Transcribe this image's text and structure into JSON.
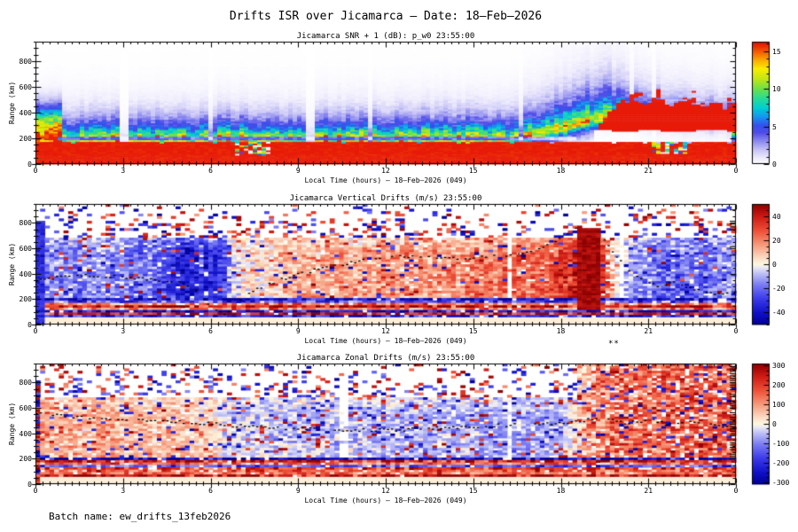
{
  "page": {
    "title": "Drifts ISR over Jicamarca — Date: 18–Feb–2026",
    "batch_label": "Batch name: ew_drifts_13feb2026",
    "footnote_mark": "**",
    "background": "#ffffff",
    "text_color": "#000000"
  },
  "chart_data": [
    {
      "type": "heatmap",
      "title": "Jicamarca SNR + 1 (dB): p_w0 23:55:00",
      "xlabel": "Local Time (hours) — 18–Feb–2026 (049)",
      "ylabel": "Range (km)",
      "xlim": [
        0,
        24
      ],
      "ylim": [
        0,
        950
      ],
      "x_tick_hours": [
        0,
        3,
        6,
        9,
        12,
        15,
        18,
        21,
        24
      ],
      "x_tick_labels": [
        "0",
        "3",
        "6",
        "9",
        "12",
        "15",
        "18",
        "21",
        "0"
      ],
      "y_tick_values": [
        0,
        200,
        400,
        600,
        800
      ],
      "y_tick_labels": [
        "0",
        "200",
        "400",
        "600",
        "800"
      ],
      "grid": false,
      "colorbar": {
        "min": 0,
        "max": 16.25,
        "minor_step": 1,
        "tick_values": [
          0,
          5,
          10,
          15
        ],
        "tick_labels": [
          "0",
          "5",
          "10",
          "15"
        ],
        "palette": "rainbow"
      },
      "model": {
        "kind": "snr",
        "amp": 14.5,
        "bottom_red_top_km": 170,
        "base_height_km": [
          [
            0,
            190
          ],
          [
            16,
            190
          ],
          [
            17.5,
            235
          ],
          [
            19,
            330
          ],
          [
            19.9,
            345
          ],
          [
            21,
            300
          ],
          [
            22.5,
            265
          ],
          [
            24,
            255
          ]
        ],
        "decay_km": [
          [
            0,
            105
          ],
          [
            16,
            112
          ],
          [
            18,
            150
          ],
          [
            19.5,
            165
          ],
          [
            21,
            135
          ],
          [
            24,
            120
          ]
        ],
        "left_hotspot": {
          "t_end": 0.9,
          "center_km": 300,
          "sigma_km": 110,
          "amp": 7
        },
        "pale_row_km": [
          185,
          212
        ],
        "blob_t_start": 19.35,
        "blob_top_km": [
          [
            19.35,
            300
          ],
          [
            19.8,
            440
          ],
          [
            20.3,
            500
          ],
          [
            20.8,
            470
          ],
          [
            21.2,
            515
          ],
          [
            21.8,
            455
          ],
          [
            22.3,
            485
          ],
          [
            22.8,
            435
          ],
          [
            23.3,
            475
          ],
          [
            23.7,
            435
          ],
          [
            24,
            465
          ]
        ],
        "blob_bottom_km": [
          [
            19.35,
            265
          ],
          [
            20,
            250
          ],
          [
            21,
            262
          ],
          [
            22,
            250
          ],
          [
            23,
            262
          ],
          [
            24,
            255
          ]
        ],
        "white_gap": {
          "t": [
            19.2,
            23.9
          ],
          "r": [
            175,
            265
          ]
        },
        "gap_stripes_t": [
          [
            2.95,
            3.18
          ],
          [
            9.3,
            9.55
          ]
        ],
        "speckle_boxes": [
          {
            "t": [
              6.9,
              8.0
            ],
            "r": [
              60,
              170
            ]
          },
          {
            "t": [
              21.05,
              22.35
            ],
            "r": [
              85,
              170
            ]
          }
        ]
      }
    },
    {
      "type": "heatmap",
      "title": "Jicamarca Vertical Drifts (m/s) 23:55:00",
      "xlabel": "Local Time (hours) — 18–Feb–2026 (049)",
      "ylabel": "Range (km)",
      "xlim": [
        0,
        24
      ],
      "ylim": [
        0,
        950
      ],
      "x_tick_hours": [
        0,
        3,
        6,
        9,
        12,
        15,
        18,
        21,
        24
      ],
      "x_tick_labels": [
        "0",
        "3",
        "6",
        "9",
        "12",
        "15",
        "18",
        "21",
        "0"
      ],
      "y_tick_values": [
        0,
        200,
        400,
        600,
        800
      ],
      "y_tick_labels": [
        "0",
        "200",
        "400",
        "600",
        "800"
      ],
      "grid": false,
      "colorbar": {
        "min": -50,
        "max": 50,
        "minor_step": 5,
        "tick_values": [
          -40,
          -20,
          0,
          20,
          40
        ],
        "tick_labels": [
          "-40",
          "-20",
          "0",
          "20",
          "40"
        ],
        "palette": "blue-white-red"
      },
      "model": {
        "kind": "drift",
        "noise": 9,
        "outlier_prob": 0.1,
        "background_profile": [
          [
            0,
            -15
          ],
          [
            2,
            -14
          ],
          [
            4,
            -18
          ],
          [
            4.8,
            -30
          ],
          [
            5.5,
            -34
          ],
          [
            6.3,
            -33
          ],
          [
            6.8,
            -4
          ],
          [
            7.5,
            7
          ],
          [
            10,
            13
          ],
          [
            13,
            17
          ],
          [
            16,
            21
          ],
          [
            17.5,
            27
          ],
          [
            18.3,
            36
          ],
          [
            18.7,
            46
          ],
          [
            19.2,
            46
          ],
          [
            19.6,
            25
          ],
          [
            20,
            -5
          ],
          [
            20.5,
            -14
          ],
          [
            21.5,
            -20
          ],
          [
            22.5,
            -22
          ],
          [
            23.2,
            -17
          ],
          [
            24,
            -15
          ]
        ],
        "saturated_band_t": [
          18.55,
          19.35
        ],
        "post_band_patchy_t": [
          19.45,
          20.3
        ],
        "gap_columns_t": [
          16.3,
          20.15
        ],
        "right_comb": true,
        "trace_km": [
          [
            0,
            345
          ],
          [
            0.7,
            375
          ],
          [
            1.5,
            390
          ],
          [
            2.2,
            385
          ],
          [
            3,
            380
          ],
          [
            3.7,
            360
          ],
          [
            4.3,
            345
          ],
          [
            5,
            330
          ],
          [
            5.5,
            260
          ],
          [
            6,
            140
          ],
          [
            6.5,
            75
          ],
          [
            6.9,
            190
          ],
          [
            7.5,
            285
          ],
          [
            8.5,
            365
          ],
          [
            9.5,
            430
          ],
          [
            10.5,
            480
          ],
          [
            11.5,
            520
          ],
          [
            12.5,
            545
          ],
          [
            13.5,
            530
          ],
          [
            14.5,
            525
          ],
          [
            15.5,
            538
          ],
          [
            16.5,
            562
          ],
          [
            17.3,
            615
          ],
          [
            18,
            685
          ],
          [
            18.5,
            755
          ],
          [
            19.35,
            700
          ],
          [
            19.8,
            560
          ],
          [
            20.3,
            430
          ],
          [
            20.8,
            360
          ],
          [
            21.3,
            310
          ],
          [
            21.9,
            335
          ],
          [
            22.5,
            285
          ],
          [
            23.2,
            245
          ],
          [
            24,
            265
          ]
        ],
        "trace_hidden_t": [
          18.55,
          19.3
        ]
      }
    },
    {
      "type": "heatmap",
      "title": "Jicamarca Zonal Drifts (m/s) 23:55:00",
      "xlabel": "Local Time (hours) — 18–Feb–2026 (049)",
      "ylabel": "Range (km)",
      "xlim": [
        0,
        24
      ],
      "ylim": [
        0,
        950
      ],
      "x_tick_hours": [
        0,
        3,
        6,
        9,
        12,
        15,
        18,
        21,
        24
      ],
      "x_tick_labels": [
        "0",
        "3",
        "6",
        "9",
        "12",
        "15",
        "18",
        "21",
        "0"
      ],
      "y_tick_values": [
        0,
        200,
        400,
        600,
        800
      ],
      "y_tick_labels": [
        "0",
        "200",
        "400",
        "600",
        "800"
      ],
      "grid": false,
      "colorbar": {
        "min": -310,
        "max": 310,
        "minor_step": 25,
        "tick_values": [
          -300,
          -200,
          -100,
          0,
          100,
          200,
          300
        ],
        "tick_labels": [
          "-300",
          "-200",
          "-100",
          "0",
          "100",
          "200",
          "300"
        ],
        "palette": "blue-white-red"
      },
      "model": {
        "kind": "drift",
        "noise": 48,
        "outlier_prob": 0.13,
        "background_profile": [
          [
            0,
            70
          ],
          [
            2,
            76
          ],
          [
            4,
            70
          ],
          [
            5.5,
            58
          ],
          [
            6.2,
            20
          ],
          [
            6.8,
            -28
          ],
          [
            8,
            -42
          ],
          [
            10,
            -48
          ],
          [
            12,
            -52
          ],
          [
            14,
            -62
          ],
          [
            16,
            -68
          ],
          [
            18,
            -58
          ],
          [
            18.6,
            30
          ],
          [
            19,
            115
          ],
          [
            20,
            150
          ],
          [
            21,
            135
          ],
          [
            22,
            150
          ],
          [
            23,
            160
          ],
          [
            24,
            150
          ]
        ],
        "gap_columns_t": [
          10.55,
          16.3
        ],
        "right_noisy_t": 18.6,
        "right_comb": true,
        "dense_right_comb": true,
        "trace_km": [
          [
            0,
            560
          ],
          [
            1,
            540
          ],
          [
            2,
            528
          ],
          [
            3,
            515
          ],
          [
            4,
            505
          ],
          [
            5,
            494
          ],
          [
            5.8,
            482
          ],
          [
            6.5,
            470
          ],
          [
            7.2,
            460
          ],
          [
            8,
            450
          ],
          [
            9,
            440
          ],
          [
            10,
            433
          ],
          [
            11,
            428
          ],
          [
            12,
            430
          ],
          [
            13,
            438
          ],
          [
            14,
            448
          ],
          [
            15,
            458
          ],
          [
            16,
            468
          ],
          [
            17,
            478
          ],
          [
            18,
            486
          ],
          [
            18.8,
            505
          ],
          [
            19.5,
            535
          ],
          [
            20.2,
            480
          ],
          [
            21,
            515
          ],
          [
            21.8,
            465
          ],
          [
            22.5,
            505
          ],
          [
            23.2,
            470
          ],
          [
            24,
            452
          ]
        ]
      }
    }
  ]
}
